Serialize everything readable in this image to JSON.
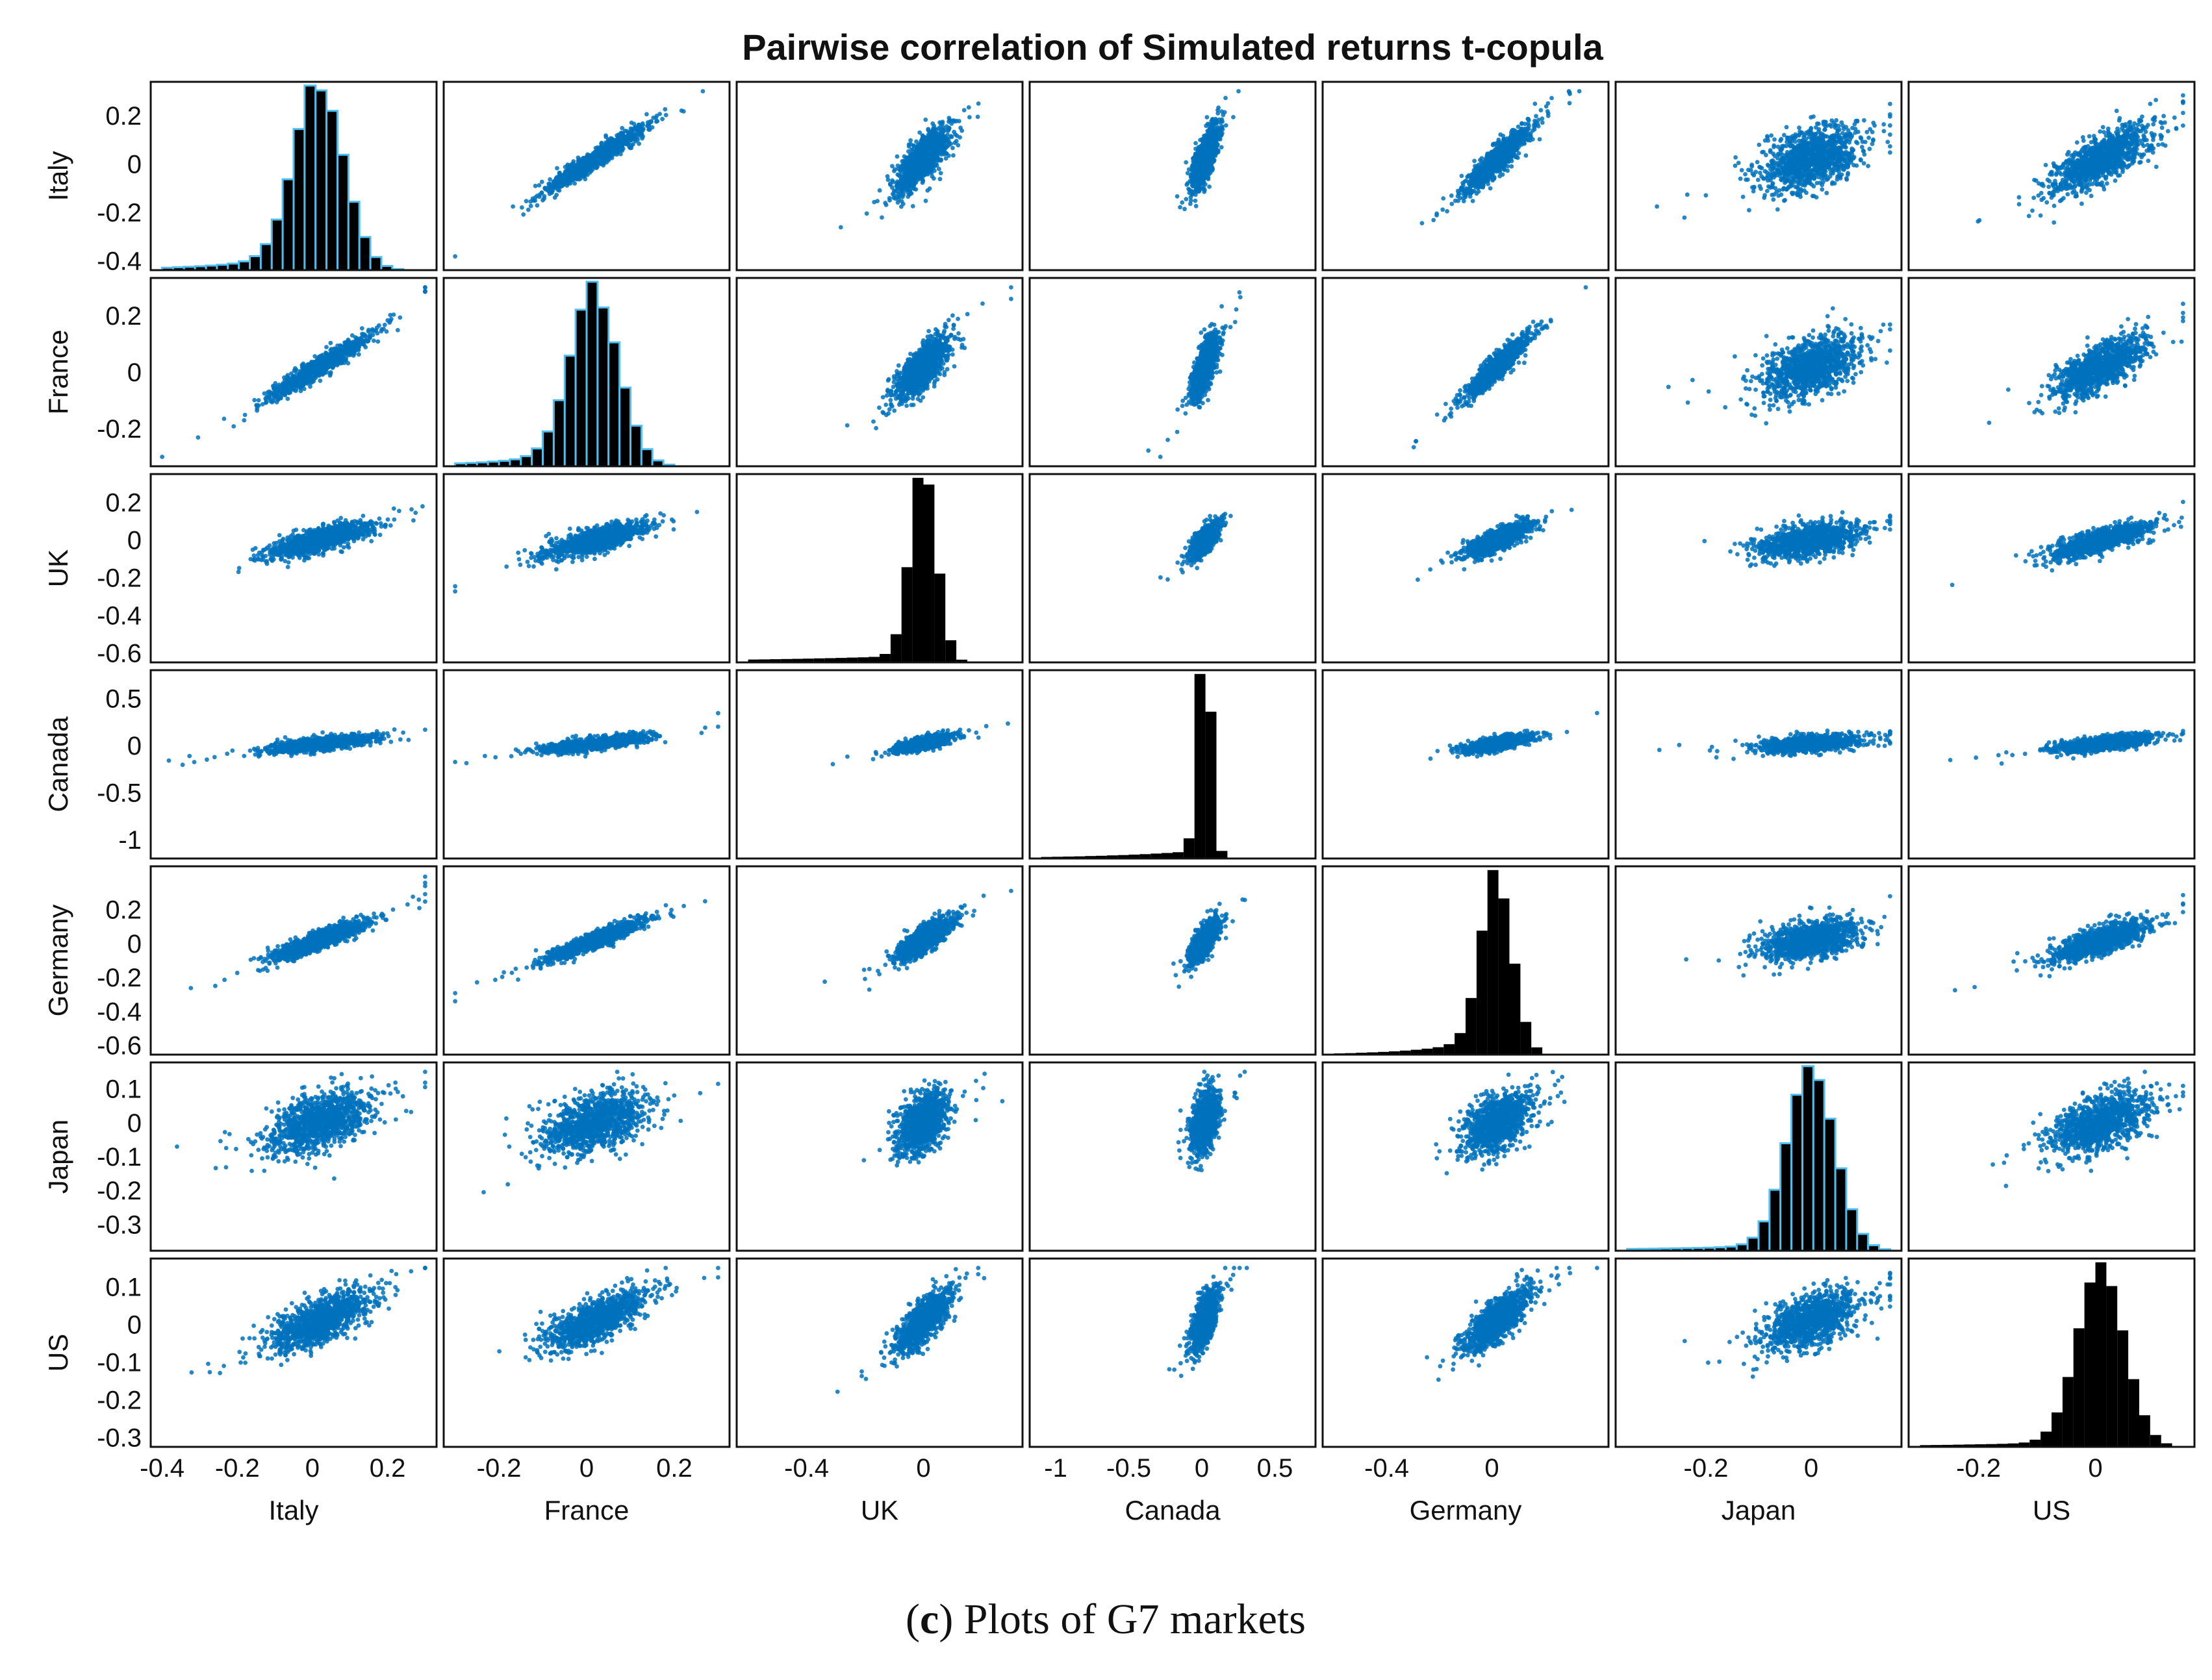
{
  "figure": {
    "caption_open": "(",
    "caption_letter": "c",
    "caption_rest": ") Plots of G7 markets"
  },
  "colors": {
    "scatter": "#0072BD",
    "hist_bar": "#000000",
    "hist_edge": "#4DBEEE",
    "axes": "#111111"
  },
  "chart_data": {
    "type": "scatter",
    "subtype": "scatter-matrix",
    "title": "Pairwise correlation of Simulated returns t-copula",
    "markets": [
      {
        "name": "Italy",
        "range": [
          -0.4,
          0.3
        ],
        "y_ticks": [
          0.2,
          0,
          -0.2,
          -0.4
        ],
        "y_tick_labels": [
          "0.2",
          "0",
          "-0.2",
          "-0.4"
        ],
        "x_ticks": [
          -0.4,
          -0.2,
          0,
          0.2
        ],
        "x_tick_labels": [
          "-0.4",
          "-0.2",
          "0",
          "0.2"
        ],
        "mode": 0.02,
        "sd": 0.065,
        "skew": -1.0,
        "hist_edge": true
      },
      {
        "name": "France",
        "range": [
          -0.3,
          0.3
        ],
        "y_ticks": [
          0.2,
          0,
          -0.2
        ],
        "y_tick_labels": [
          "0.2",
          "0",
          "-0.2"
        ],
        "x_ticks": [
          -0.2,
          0,
          0.2
        ],
        "x_tick_labels": [
          "-0.2",
          "0",
          "0.2"
        ],
        "mode": 0.02,
        "sd": 0.055,
        "skew": -1.0,
        "hist_edge": true
      },
      {
        "name": "UK",
        "range": [
          -0.6,
          0.3
        ],
        "y_ticks": [
          0.2,
          0,
          -0.2,
          -0.4,
          -0.6
        ],
        "y_tick_labels": [
          "0.2",
          "0",
          "-0.2",
          "-0.4",
          "-0.6"
        ],
        "x_ticks": [
          -0.4,
          0
        ],
        "x_tick_labels": [
          "-0.4",
          "0"
        ],
        "mode": 0.0,
        "sd": 0.045,
        "skew": -0.2,
        "hist_edge": false
      },
      {
        "name": "Canada",
        "range": [
          -1.1,
          0.7
        ],
        "y_ticks": [
          0.5,
          0,
          -0.5,
          -1
        ],
        "y_tick_labels": [
          "0.5",
          "0",
          "-0.5",
          "-1"
        ],
        "x_ticks": [
          -1,
          -0.5,
          0,
          0.5
        ],
        "x_tick_labels": [
          "-1",
          "-0.5",
          "0",
          "0.5"
        ],
        "mode": 0.02,
        "sd": 0.045,
        "skew": -0.2,
        "hist_edge": false
      },
      {
        "name": "Germany",
        "range": [
          -0.6,
          0.4
        ],
        "y_ticks": [
          0.2,
          0,
          -0.2,
          -0.4,
          -0.6
        ],
        "y_tick_labels": [
          "0.2",
          "0",
          "-0.2",
          "-0.4",
          "-0.6"
        ],
        "x_ticks": [
          -0.4,
          0
        ],
        "x_tick_labels": [
          "-0.4",
          "0"
        ],
        "mode": 0.02,
        "sd": 0.06,
        "skew": -0.8,
        "hist_edge": false
      },
      {
        "name": "Japan",
        "range": [
          -0.35,
          0.15
        ],
        "y_ticks": [
          0.1,
          0,
          -0.1,
          -0.2,
          -0.3
        ],
        "y_tick_labels": [
          "0.1",
          "0",
          "-0.1",
          "-0.2",
          "-0.3"
        ],
        "x_ticks": [
          -0.2,
          0
        ],
        "x_tick_labels": [
          "-0.2",
          "0"
        ],
        "mode": 0.0,
        "sd": 0.045,
        "skew": -0.5,
        "hist_edge": true
      },
      {
        "name": "US",
        "range": [
          -0.3,
          0.15
        ],
        "y_ticks": [
          0.1,
          0,
          -0.1,
          -0.2,
          -0.3
        ],
        "y_tick_labels": [
          "0.1",
          "0",
          "-0.1",
          "-0.2",
          "-0.3"
        ],
        "x_ticks": [
          -0.2,
          0
        ],
        "x_tick_labels": [
          "-0.2",
          "0"
        ],
        "mode": 0.01,
        "sd": 0.04,
        "skew": -0.5,
        "hist_edge": false
      }
    ],
    "pairwise_correlation": [
      [
        1.0,
        0.95,
        0.75,
        0.7,
        0.9,
        0.45,
        0.7
      ],
      [
        0.95,
        1.0,
        0.75,
        0.7,
        0.92,
        0.45,
        0.72
      ],
      [
        0.75,
        0.75,
        1.0,
        0.7,
        0.78,
        0.45,
        0.75
      ],
      [
        0.7,
        0.7,
        0.7,
        1.0,
        0.7,
        0.4,
        0.65
      ],
      [
        0.9,
        0.92,
        0.78,
        0.7,
        1.0,
        0.45,
        0.75
      ],
      [
        0.45,
        0.45,
        0.45,
        0.4,
        0.45,
        1.0,
        0.5
      ],
      [
        0.7,
        0.72,
        0.75,
        0.65,
        0.75,
        0.5,
        1.0
      ]
    ],
    "diagonal": "histogram",
    "off_diagonal": "scatter",
    "xlabel": "",
    "ylabel": ""
  }
}
